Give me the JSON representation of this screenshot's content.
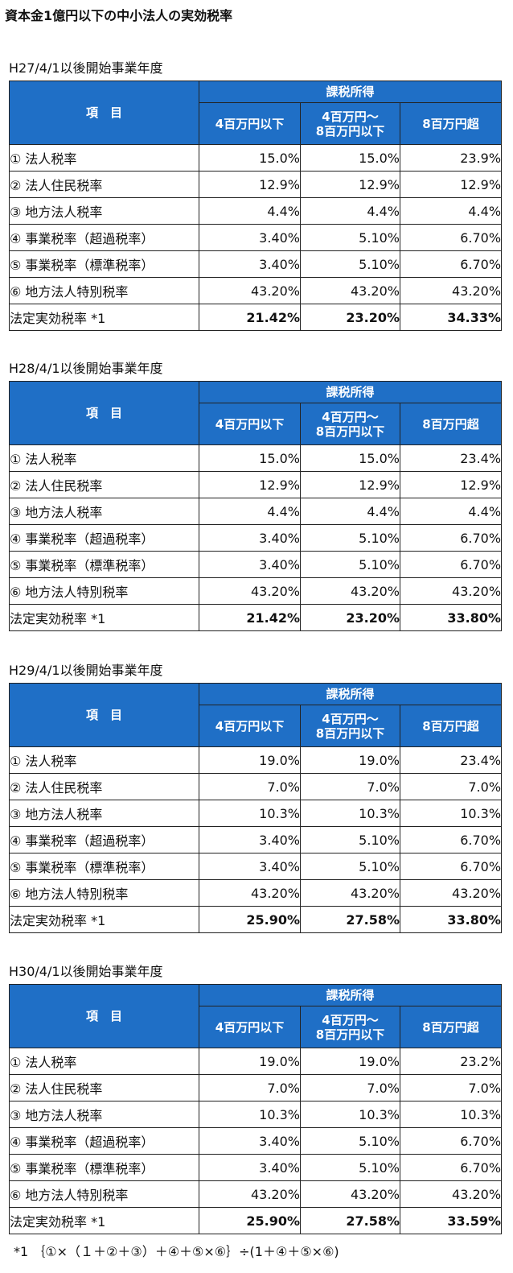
{
  "page_title": "資本金1億円以下の中小法人の実効税率",
  "header": {
    "item": "項　目",
    "group": "課税所得",
    "col1": "4百万円以下",
    "col2_line1": "4百万円～",
    "col2_line2": "8百万円以下",
    "col3": "8百万円超"
  },
  "row_labels": [
    "① 法人税率",
    "② 法人住民税率",
    "③ 地方法人税率",
    "④ 事業税率（超過税率）",
    "⑤ 事業税率（標準税率）",
    "⑥ 地方法人特別税率",
    "法定実効税率 *1"
  ],
  "sections": [
    {
      "title": "H27/4/1以後開始事業年度",
      "rows": [
        [
          "15.0%",
          "15.0%",
          "23.9%"
        ],
        [
          "12.9%",
          "12.9%",
          "12.9%"
        ],
        [
          "4.4%",
          "4.4%",
          "4.4%"
        ],
        [
          "3.40%",
          "5.10%",
          "6.70%"
        ],
        [
          "3.40%",
          "5.10%",
          "6.70%"
        ],
        [
          "43.20%",
          "43.20%",
          "43.20%"
        ],
        [
          "21.42%",
          "23.20%",
          "34.33%"
        ]
      ]
    },
    {
      "title": "H28/4/1以後開始事業年度",
      "rows": [
        [
          "15.0%",
          "15.0%",
          "23.4%"
        ],
        [
          "12.9%",
          "12.9%",
          "12.9%"
        ],
        [
          "4.4%",
          "4.4%",
          "4.4%"
        ],
        [
          "3.40%",
          "5.10%",
          "6.70%"
        ],
        [
          "3.40%",
          "5.10%",
          "6.70%"
        ],
        [
          "43.20%",
          "43.20%",
          "43.20%"
        ],
        [
          "21.42%",
          "23.20%",
          "33.80%"
        ]
      ]
    },
    {
      "title": "H29/4/1以後開始事業年度",
      "rows": [
        [
          "19.0%",
          "19.0%",
          "23.4%"
        ],
        [
          "7.0%",
          "7.0%",
          "7.0%"
        ],
        [
          "10.3%",
          "10.3%",
          "10.3%"
        ],
        [
          "3.40%",
          "5.10%",
          "6.70%"
        ],
        [
          "3.40%",
          "5.10%",
          "6.70%"
        ],
        [
          "43.20%",
          "43.20%",
          "43.20%"
        ],
        [
          "25.90%",
          "27.58%",
          "33.80%"
        ]
      ]
    },
    {
      "title": "H30/4/1以後開始事業年度",
      "rows": [
        [
          "19.0%",
          "19.0%",
          "23.2%"
        ],
        [
          "7.0%",
          "7.0%",
          "7.0%"
        ],
        [
          "10.3%",
          "10.3%",
          "10.3%"
        ],
        [
          "3.40%",
          "5.10%",
          "6.70%"
        ],
        [
          "3.40%",
          "5.10%",
          "6.70%"
        ],
        [
          "43.20%",
          "43.20%",
          "43.20%"
        ],
        [
          "25.90%",
          "27.58%",
          "33.59%"
        ]
      ]
    }
  ],
  "footnote": "*1 ｛①×（１＋②＋③）＋④＋⑤×⑥｝÷(1＋④＋⑤×⑥)",
  "colors": {
    "header_bg": "#1f6fc6",
    "header_text": "#ffffff",
    "border": "#222222"
  }
}
